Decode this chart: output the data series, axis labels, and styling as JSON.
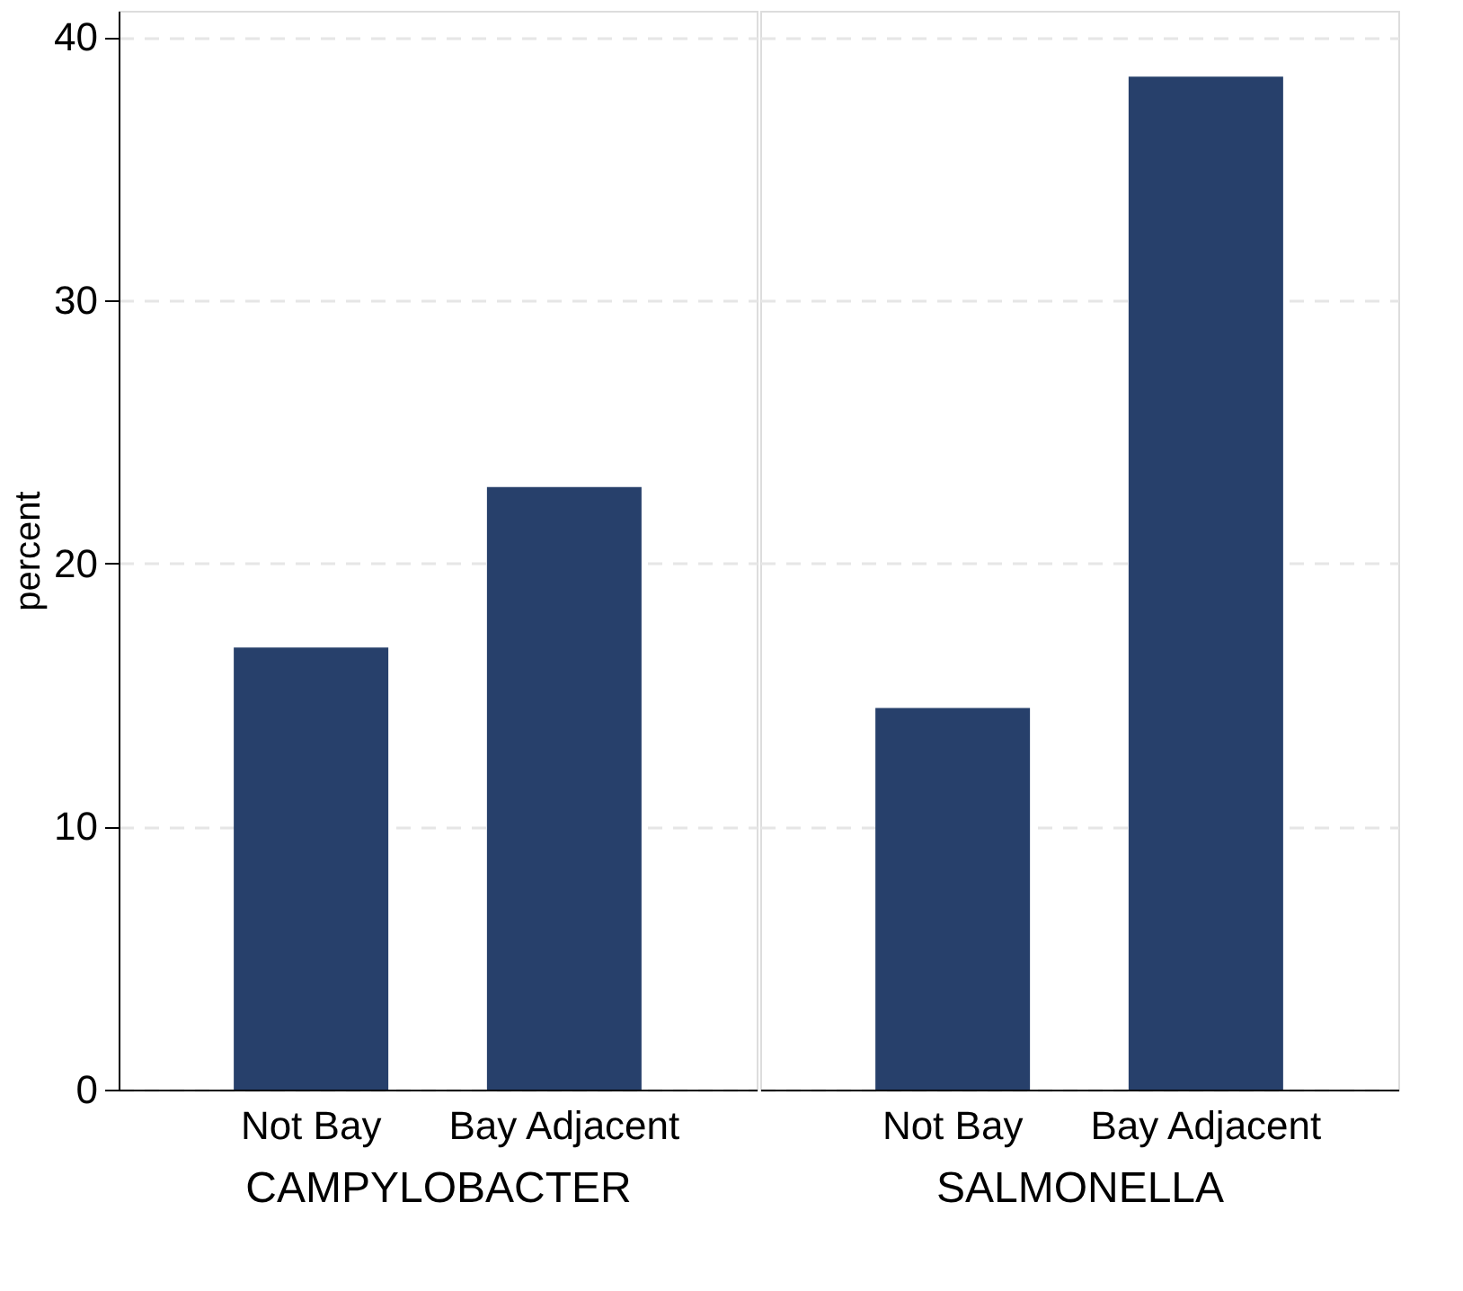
{
  "chart_data": [
    {
      "type": "bar",
      "categories": [
        "Not Bay",
        "Bay Adjacent"
      ],
      "xlabel": "CAMPYLOBACTER",
      "ylabel": "percent",
      "values": [
        16.8,
        22.9
      ],
      "color": "#27406b",
      "ylim": [
        0,
        41
      ],
      "yticks": [
        0,
        10,
        20,
        30,
        40
      ],
      "grid": "y"
    },
    {
      "type": "bar",
      "categories": [
        "Not Bay",
        "Bay Adjacent"
      ],
      "xlabel": "SALMONELLA",
      "values": [
        14.5,
        38.5
      ],
      "color": "#27406b",
      "ylim": [
        0,
        41
      ],
      "yticks": [
        0,
        10,
        20,
        30,
        40
      ],
      "grid": "y",
      "tick_labels": "x"
    }
  ]
}
